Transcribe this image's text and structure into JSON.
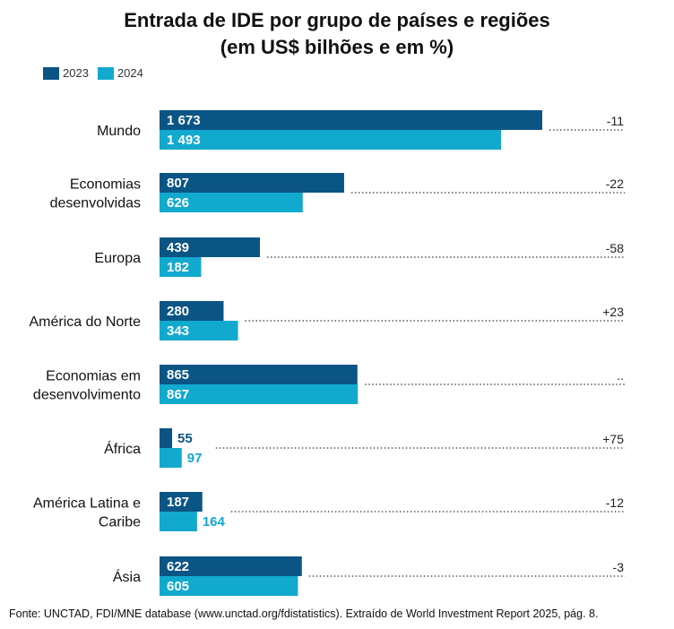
{
  "title_line1": "Entrada de IDE por grupo de países e regiões",
  "title_line2": "(em US$ bilhões e em %)",
  "source": "Fonte: UNCTAD, FDI/MNE database (www.unctad.org/fdistatistics). Extraído de World Investment Report 2025, pág. 8.",
  "colors": {
    "2023": "#0b5585",
    "2024": "#12a9cf",
    "dots": "#555555"
  },
  "chart_data": {
    "type": "bar",
    "orientation": "horizontal",
    "title": "Entrada de IDE por grupo de países e regiões",
    "subtitle": "(em US$ bilhões e em %)",
    "legend_position": "top-left",
    "categories": [
      [
        "Mundo"
      ],
      [
        "Economias",
        "desenvolvidas"
      ],
      [
        "Europa"
      ],
      [
        "América do Norte"
      ],
      [
        "Economias em",
        "desenvolvimento"
      ],
      [
        "África"
      ],
      [
        "América Latina e",
        "Caribe"
      ],
      [
        "Ásia"
      ]
    ],
    "series": [
      {
        "name": "2023",
        "values": [
          1673,
          807,
          439,
          280,
          865,
          55,
          187,
          622
        ],
        "labels": [
          "1 673",
          "807",
          "439",
          "280",
          "865",
          "55",
          "187",
          "622"
        ]
      },
      {
        "name": "2024",
        "values": [
          1493,
          626,
          182,
          343,
          867,
          97,
          164,
          605
        ],
        "labels": [
          "1 493",
          "626",
          "182",
          "343",
          "867",
          "97",
          "164",
          "605"
        ]
      }
    ],
    "change_pct": [
      "-11",
      "-22",
      "-58",
      "+23",
      "..",
      "+75",
      "-12",
      "-3"
    ],
    "xlim": [
      0,
      1673
    ]
  }
}
